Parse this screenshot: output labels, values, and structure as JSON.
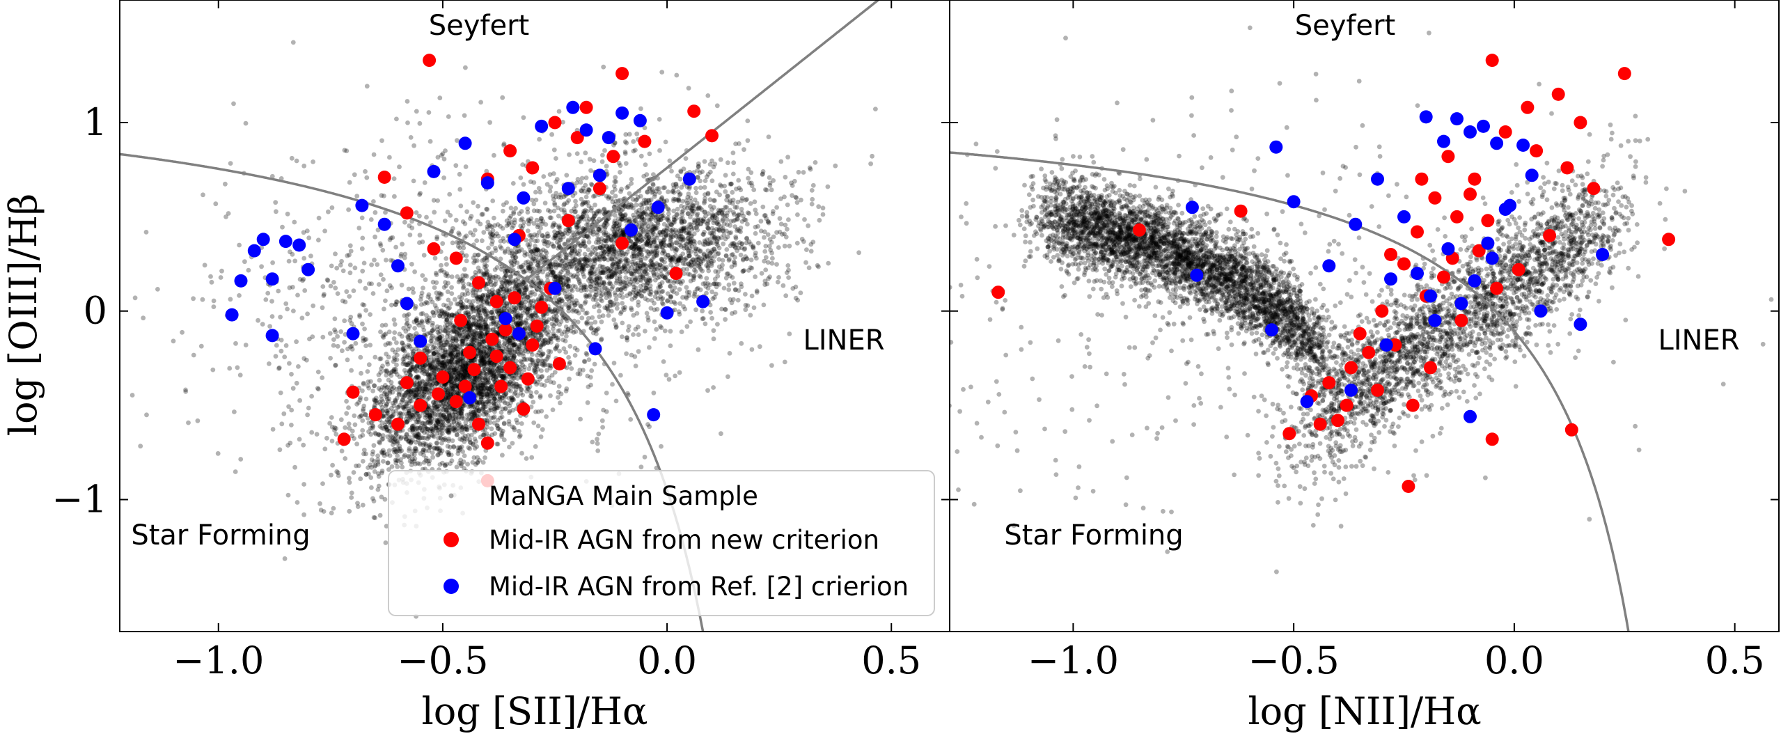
{
  "colors": {
    "main_sample": "#000000",
    "new_criterion": "#ff0000",
    "ref2_criterion": "#0000ff",
    "boundary": "#808080",
    "frame": "#000000",
    "legend_edge": "#cccccc"
  },
  "legend": {
    "placement": "lower-left of left panel",
    "entries": [
      {
        "label": "MaNGA Main Sample",
        "color": "#000000",
        "marker": "small translucent dot"
      },
      {
        "label": "Mid-IR AGN from new criterion",
        "color": "#ff0000",
        "marker": "filled circle"
      },
      {
        "label": "Mid-IR AGN from Ref. [2] crierion",
        "color": "#0000ff",
        "marker": "filled circle"
      }
    ]
  },
  "chart_data": [
    {
      "type": "scatter",
      "panel": "left",
      "title": "",
      "xlabel": "log [SII]/Hα",
      "ylabel": "log [OIII]/Hβ",
      "xlim": [
        -1.22,
        0.63
      ],
      "ylim": [
        -1.7,
        1.65
      ],
      "xticks": [
        "−1.0",
        "−0.5",
        "0.0",
        "0.5"
      ],
      "xtick_values": [
        -1.0,
        -0.5,
        0.0,
        0.5
      ],
      "yticks": [
        "−1",
        "0",
        "1"
      ],
      "ytick_values": [
        -1,
        0,
        1
      ],
      "grid": false,
      "region_labels": [
        "Seyfert",
        "LINER",
        "Star Forming"
      ],
      "boundaries": [
        {
          "name": "Kewley maximum starburst line",
          "formula": "0.72/(x-0.32)+1.30"
        },
        {
          "name": "Seyfert/LINER line",
          "formula": "1.89*x+0.76"
        }
      ],
      "series": [
        {
          "name": "MaNGA Main Sample",
          "color": "#000000",
          "n_points": 7000,
          "distribution": "dense cloud, star-forming branch centered near (-0.45, -0.35), AGN branch centered near (-0.05, 0.35)"
        },
        {
          "name": "Mid-IR AGN from new criterion",
          "color": "#ff0000",
          "points": [
            [
              -0.53,
              1.33
            ],
            [
              -0.1,
              1.26
            ],
            [
              -0.63,
              0.71
            ],
            [
              -0.58,
              0.52
            ],
            [
              -0.52,
              0.33
            ],
            [
              -0.47,
              0.28
            ],
            [
              -0.4,
              0.7
            ],
            [
              -0.35,
              0.85
            ],
            [
              -0.3,
              0.76
            ],
            [
              -0.25,
              1.0
            ],
            [
              -0.2,
              0.92
            ],
            [
              -0.18,
              1.08
            ],
            [
              -0.12,
              0.82
            ],
            [
              -0.05,
              0.9
            ],
            [
              0.06,
              1.06
            ],
            [
              0.1,
              0.93
            ],
            [
              -0.15,
              0.65
            ],
            [
              -0.22,
              0.48
            ],
            [
              -0.33,
              0.4
            ],
            [
              -0.1,
              0.36
            ],
            [
              0.02,
              0.2
            ],
            [
              -0.42,
              0.15
            ],
            [
              -0.38,
              0.05
            ],
            [
              -0.36,
              -0.1
            ],
            [
              -0.44,
              -0.22
            ],
            [
              -0.5,
              -0.35
            ],
            [
              -0.47,
              -0.48
            ],
            [
              -0.42,
              -0.6
            ],
            [
              -0.4,
              -0.7
            ],
            [
              -0.35,
              -0.3
            ],
            [
              -0.3,
              -0.18
            ],
            [
              -0.28,
              0.02
            ],
            [
              -0.32,
              -0.52
            ],
            [
              -0.55,
              -0.5
            ],
            [
              -0.58,
              -0.38
            ],
            [
              -0.6,
              -0.6
            ],
            [
              -0.65,
              -0.55
            ],
            [
              -0.7,
              -0.43
            ],
            [
              -0.72,
              -0.68
            ],
            [
              -0.55,
              -0.25
            ],
            [
              -0.37,
              -0.4
            ],
            [
              -0.39,
              -0.15
            ],
            [
              -0.46,
              -0.05
            ],
            [
              -0.4,
              -0.9
            ],
            [
              -0.34,
              0.07
            ],
            [
              -0.29,
              -0.08
            ],
            [
              -0.24,
              -0.28
            ],
            [
              -0.45,
              -0.4
            ],
            [
              -0.51,
              -0.44
            ],
            [
              -0.43,
              -0.31
            ],
            [
              -0.38,
              -0.24
            ],
            [
              -0.33,
              -0.12
            ],
            [
              -0.31,
              -0.36
            ],
            [
              -0.26,
              0.12
            ]
          ]
        },
        {
          "name": "Mid-IR AGN from Ref. [2] crierion",
          "color": "#0000ff",
          "points": [
            [
              -0.97,
              -0.02
            ],
            [
              -0.95,
              0.16
            ],
            [
              -0.92,
              0.32
            ],
            [
              -0.9,
              0.38
            ],
            [
              -0.88,
              0.17
            ],
            [
              -0.88,
              -0.13
            ],
            [
              -0.85,
              0.37
            ],
            [
              -0.82,
              0.35
            ],
            [
              -0.8,
              0.22
            ],
            [
              -0.68,
              0.56
            ],
            [
              -0.63,
              0.46
            ],
            [
              -0.6,
              0.24
            ],
            [
              -0.58,
              0.04
            ],
            [
              -0.55,
              -0.16
            ],
            [
              -0.52,
              0.74
            ],
            [
              -0.45,
              0.89
            ],
            [
              -0.4,
              0.68
            ],
            [
              -0.32,
              0.6
            ],
            [
              -0.28,
              0.98
            ],
            [
              -0.21,
              1.08
            ],
            [
              -0.18,
              0.96
            ],
            [
              -0.13,
              0.92
            ],
            [
              -0.1,
              1.05
            ],
            [
              -0.06,
              1.01
            ],
            [
              -0.15,
              0.72
            ],
            [
              -0.22,
              0.65
            ],
            [
              -0.08,
              0.43
            ],
            [
              -0.02,
              0.55
            ],
            [
              0.05,
              0.7
            ],
            [
              -0.34,
              0.38
            ],
            [
              -0.36,
              -0.04
            ],
            [
              -0.33,
              -0.12
            ],
            [
              -0.25,
              0.12
            ],
            [
              -0.16,
              -0.2
            ],
            [
              0.08,
              0.05
            ],
            [
              -0.03,
              -0.55
            ],
            [
              0.0,
              -0.01
            ],
            [
              -0.44,
              -0.46
            ],
            [
              -0.7,
              -0.12
            ]
          ]
        }
      ]
    },
    {
      "type": "scatter",
      "panel": "right",
      "title": "",
      "xlabel": "log [NII]/Hα",
      "ylabel": "",
      "xlim": [
        -1.28,
        0.6
      ],
      "ylim": [
        -1.7,
        1.65
      ],
      "xticks": [
        "−1.0",
        "−0.5",
        "0.0",
        "0.5"
      ],
      "xtick_values": [
        -1.0,
        -0.5,
        0.0,
        0.5
      ],
      "grid": false,
      "region_labels": [
        "Seyfert",
        "LINER",
        "Star Forming"
      ],
      "boundaries": [
        {
          "name": "Kewley maximum starburst line",
          "formula": "0.61/(x-0.47)+1.19"
        }
      ],
      "series": [
        {
          "name": "MaNGA Main Sample",
          "color": "#000000",
          "n_points": 7000,
          "distribution": "V-shaped: star-forming branch from (-1.0, 0.45) to (-0.45, -0.6), AGN branch from (-0.45, -0.6) to (0.1, 0.45)"
        },
        {
          "name": "Mid-IR AGN from new criterion",
          "color": "#ff0000",
          "points": [
            [
              -1.17,
              0.1
            ],
            [
              -0.85,
              0.43
            ],
            [
              -0.62,
              0.53
            ],
            [
              -0.51,
              -0.65
            ],
            [
              -0.46,
              -0.45
            ],
            [
              -0.42,
              -0.38
            ],
            [
              -0.4,
              -0.58
            ],
            [
              -0.37,
              -0.3
            ],
            [
              -0.33,
              -0.22
            ],
            [
              -0.3,
              0.0
            ],
            [
              -0.28,
              0.3
            ],
            [
              -0.25,
              0.25
            ],
            [
              -0.22,
              0.42
            ],
            [
              -0.2,
              0.08
            ],
            [
              -0.18,
              0.6
            ],
            [
              -0.15,
              0.82
            ],
            [
              -0.13,
              0.5
            ],
            [
              -0.1,
              0.62
            ],
            [
              -0.08,
              0.32
            ],
            [
              -0.05,
              1.33
            ],
            [
              -0.04,
              0.12
            ],
            [
              -0.02,
              0.95
            ],
            [
              0.03,
              1.08
            ],
            [
              0.05,
              0.85
            ],
            [
              0.08,
              0.4
            ],
            [
              0.12,
              0.76
            ],
            [
              0.15,
              1.0
            ],
            [
              0.18,
              0.65
            ],
            [
              0.25,
              1.26
            ],
            [
              0.35,
              0.38
            ],
            [
              0.13,
              -0.63
            ],
            [
              -0.05,
              -0.68
            ],
            [
              -0.24,
              -0.93
            ],
            [
              -0.27,
              -0.18
            ],
            [
              -0.31,
              -0.42
            ],
            [
              -0.23,
              -0.5
            ],
            [
              -0.19,
              -0.3
            ],
            [
              -0.16,
              0.18
            ],
            [
              -0.12,
              -0.05
            ],
            [
              -0.09,
              0.7
            ],
            [
              -0.06,
              0.48
            ],
            [
              0.01,
              0.22
            ],
            [
              -0.35,
              -0.12
            ],
            [
              -0.38,
              -0.5
            ],
            [
              -0.44,
              -0.6
            ],
            [
              -0.21,
              0.7
            ],
            [
              0.1,
              1.15
            ],
            [
              -0.14,
              0.28
            ]
          ]
        },
        {
          "name": "Mid-IR AGN from Ref. [2] crierion",
          "color": "#0000ff",
          "points": [
            [
              -0.73,
              0.55
            ],
            [
              -0.72,
              0.19
            ],
            [
              -0.54,
              0.87
            ],
            [
              -0.5,
              0.58
            ],
            [
              -0.42,
              0.24
            ],
            [
              -0.36,
              0.46
            ],
            [
              -0.31,
              0.7
            ],
            [
              -0.28,
              0.17
            ],
            [
              -0.25,
              0.5
            ],
            [
              -0.2,
              1.03
            ],
            [
              -0.16,
              0.9
            ],
            [
              -0.13,
              1.02
            ],
            [
              -0.1,
              0.95
            ],
            [
              -0.07,
              0.98
            ],
            [
              -0.04,
              0.89
            ],
            [
              -0.01,
              0.56
            ],
            [
              -0.06,
              0.36
            ],
            [
              -0.09,
              0.16
            ],
            [
              -0.12,
              0.04
            ],
            [
              -0.15,
              0.33
            ],
            [
              -0.18,
              -0.05
            ],
            [
              -0.22,
              0.2
            ],
            [
              0.02,
              0.88
            ],
            [
              0.04,
              0.72
            ],
            [
              0.06,
              0.0
            ],
            [
              0.2,
              0.3
            ],
            [
              0.15,
              -0.07
            ],
            [
              -0.1,
              -0.56
            ],
            [
              -0.29,
              -0.18
            ],
            [
              -0.37,
              -0.42
            ],
            [
              -0.47,
              -0.48
            ],
            [
              -0.55,
              -0.1
            ],
            [
              -0.19,
              0.08
            ],
            [
              -0.05,
              0.28
            ],
            [
              -0.02,
              0.54
            ]
          ]
        }
      ]
    }
  ]
}
